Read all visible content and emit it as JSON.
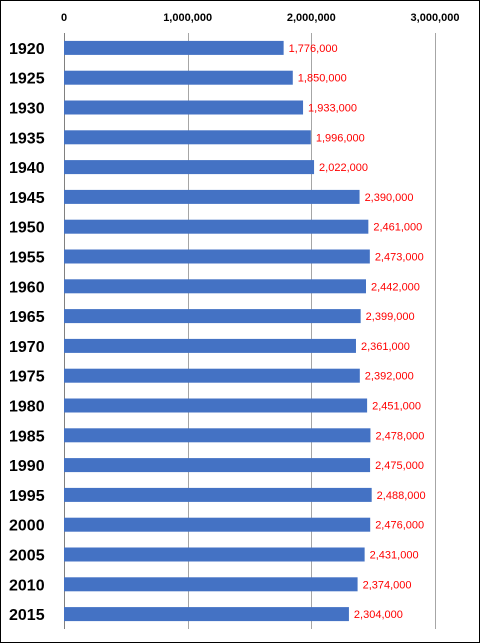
{
  "chart_data": {
    "type": "bar",
    "orientation": "horizontal",
    "title": "",
    "xlabel": "",
    "ylabel": "",
    "xlim": [
      0,
      3000000
    ],
    "x_ticks": [
      0,
      1000000,
      2000000,
      3000000
    ],
    "x_tick_labels": [
      "0",
      "1,000,000",
      "2,000,000",
      "3,000,000"
    ],
    "x_axis_position": "top",
    "grid": true,
    "legend": "none",
    "categories": [
      "1920",
      "1925",
      "1930",
      "1935",
      "1940",
      "1945",
      "1950",
      "1955",
      "1960",
      "1965",
      "1970",
      "1975",
      "1980",
      "1985",
      "1990",
      "1995",
      "2000",
      "2005",
      "2010",
      "2015"
    ],
    "values": [
      1776000,
      1850000,
      1933000,
      1996000,
      2022000,
      2390000,
      2461000,
      2473000,
      2442000,
      2399000,
      2361000,
      2392000,
      2451000,
      2478000,
      2475000,
      2488000,
      2476000,
      2431000,
      2374000,
      2304000
    ],
    "data_labels": [
      "1,776,000",
      "1,850,000",
      "1,933,000",
      "1,996,000",
      "2,022,000",
      "2,390,000",
      "2,461,000",
      "2,473,000",
      "2,442,000",
      "2,399,000",
      "2,361,000",
      "2,392,000",
      "2,451,000",
      "2,478,000",
      "2,475,000",
      "2,488,000",
      "2,476,000",
      "2,431,000",
      "2,374,000",
      "2,304,000"
    ],
    "colors": {
      "bar": "#4472c4",
      "data_label": "#ff0000",
      "grid": "#a6a6a6",
      "border": "#000000"
    }
  }
}
